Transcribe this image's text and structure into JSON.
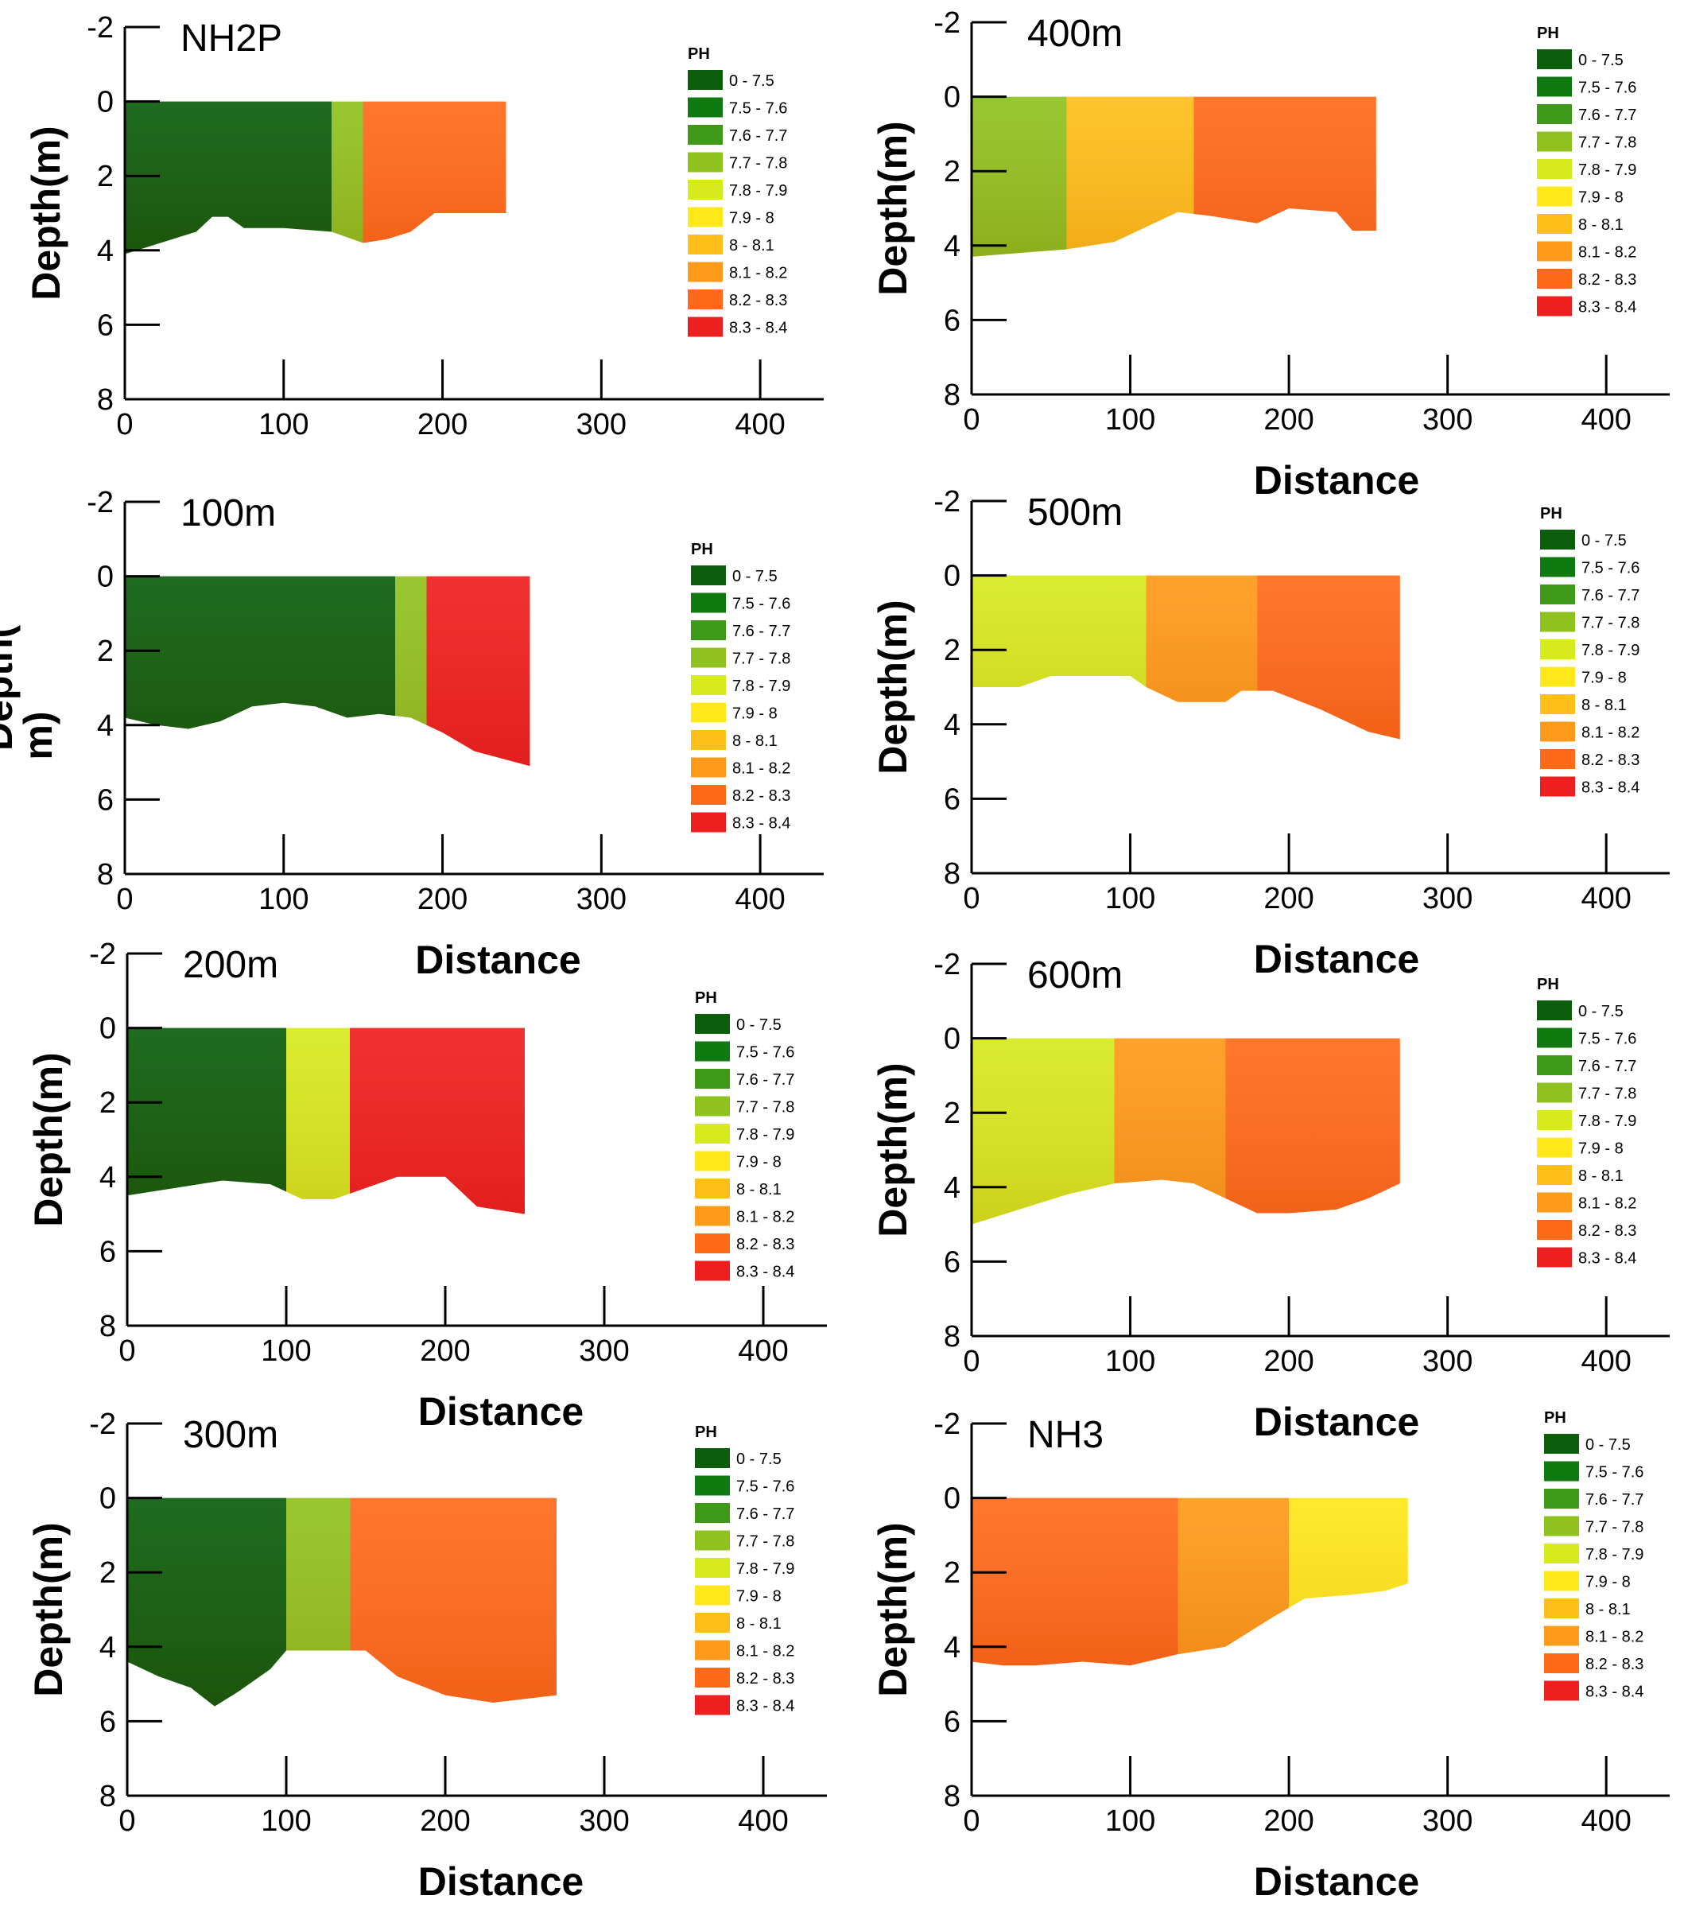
{
  "figure": {
    "background": "#ffffff"
  },
  "legend_entries": [
    {
      "label": "0 - 7.5",
      "color": "#0b5d0b"
    },
    {
      "label": "7.5 - 7.6",
      "color": "#0f7a10"
    },
    {
      "label": "7.6 - 7.7",
      "color": "#3f9a1a"
    },
    {
      "label": "7.7 - 7.8",
      "color": "#8fc21f"
    },
    {
      "label": "7.8 - 7.9",
      "color": "#d6ea1e"
    },
    {
      "label": "7.9 - 8",
      "color": "#ffe81a"
    },
    {
      "label": "8 - 8.1",
      "color": "#ffbf1a"
    },
    {
      "label": "8.1 - 8.2",
      "color": "#ff9a1a"
    },
    {
      "label": "8.2 - 8.3",
      "color": "#ff6a1a"
    },
    {
      "label": "8.3 - 8.4",
      "color": "#ee1f1f"
    }
  ],
  "chart_data": [
    {
      "type": "heatmap",
      "title": "NH2P",
      "xlabel": "",
      "ylabel": "Depth(m)",
      "xlim": [
        0,
        440
      ],
      "ylim": [
        -2,
        8
      ],
      "x_ticks": [
        "0",
        "100",
        "200",
        "300",
        "400"
      ],
      "y_ticks": [
        "-2",
        "0",
        "2",
        "4",
        "6",
        "8"
      ],
      "legend_title": "PH",
      "bottom_profile": {
        "x": [
          0,
          15,
          30,
          45,
          55,
          65,
          75,
          100,
          130,
          150,
          165,
          180,
          195,
          240
        ],
        "y": [
          4.1,
          3.9,
          3.7,
          3.5,
          3.1,
          3.1,
          3.4,
          3.4,
          3.5,
          3.8,
          3.7,
          3.5,
          3.0,
          3.0
        ]
      },
      "surface_x_max": 240,
      "regions": [
        {
          "label": "0 - 7.5",
          "x_range": [
            0,
            130
          ]
        },
        {
          "label": "7.7 - 7.8",
          "x_range": [
            130,
            150
          ]
        },
        {
          "label": "8.2 - 8.3",
          "x_range": [
            150,
            240
          ]
        }
      ]
    },
    {
      "type": "heatmap",
      "title": "100m",
      "xlabel": "Distance",
      "ylabel": "Depth(\nm)",
      "xlim": [
        0,
        440
      ],
      "ylim": [
        -2,
        8
      ],
      "x_ticks": [
        "0",
        "100",
        "200",
        "300",
        "400"
      ],
      "y_ticks": [
        "-2",
        "0",
        "2",
        "4",
        "6",
        "8"
      ],
      "legend_title": "PH",
      "bottom_profile": {
        "x": [
          0,
          20,
          40,
          60,
          80,
          100,
          120,
          140,
          160,
          180,
          200,
          220,
          255
        ],
        "y": [
          3.8,
          4.0,
          4.1,
          3.9,
          3.5,
          3.4,
          3.5,
          3.8,
          3.7,
          3.8,
          4.2,
          4.7,
          5.1
        ]
      },
      "surface_x_max": 255,
      "regions": [
        {
          "label": "0 - 7.5",
          "x_range": [
            0,
            170
          ]
        },
        {
          "label": "7.7 - 7.8",
          "x_range": [
            170,
            190
          ]
        },
        {
          "label": "8.3 - 8.4",
          "x_range": [
            190,
            255
          ]
        }
      ]
    },
    {
      "type": "heatmap",
      "title": "200m",
      "xlabel": "Distance",
      "ylabel": "Depth(m)",
      "xlim": [
        0,
        440
      ],
      "ylim": [
        -2,
        8
      ],
      "x_ticks": [
        "0",
        "100",
        "200",
        "300",
        "400"
      ],
      "y_ticks": [
        "-2",
        "0",
        "2",
        "4",
        "6",
        "8"
      ],
      "legend_title": "PH",
      "bottom_profile": {
        "x": [
          0,
          30,
          60,
          90,
          110,
          130,
          150,
          170,
          200,
          220,
          250
        ],
        "y": [
          4.5,
          4.3,
          4.1,
          4.2,
          4.6,
          4.6,
          4.3,
          4.0,
          4.0,
          4.8,
          5.0
        ]
      },
      "surface_x_max": 250,
      "regions": [
        {
          "label": "0 - 7.5",
          "x_range": [
            0,
            100
          ]
        },
        {
          "label": "7.8 - 7.9",
          "x_range": [
            100,
            140
          ]
        },
        {
          "label": "8.3 - 8.4",
          "x_range": [
            140,
            250
          ]
        }
      ]
    },
    {
      "type": "heatmap",
      "title": "300m",
      "xlabel": "Distance",
      "ylabel": "Depth(m)",
      "xlim": [
        0,
        440
      ],
      "ylim": [
        -2,
        8
      ],
      "x_ticks": [
        "0",
        "100",
        "200",
        "300",
        "400"
      ],
      "y_ticks": [
        "-2",
        "0",
        "2",
        "4",
        "6",
        "8"
      ],
      "legend_title": "PH",
      "bottom_profile": {
        "x": [
          0,
          20,
          40,
          55,
          70,
          90,
          100,
          150,
          170,
          200,
          230,
          270
        ],
        "y": [
          4.4,
          4.8,
          5.1,
          5.6,
          5.2,
          4.6,
          4.1,
          4.1,
          4.8,
          5.3,
          5.5,
          5.3
        ]
      },
      "surface_x_max": 270,
      "regions": [
        {
          "label": "0 - 7.5",
          "x_range": [
            0,
            100
          ]
        },
        {
          "label": "7.7 - 7.8",
          "x_range": [
            100,
            140
          ]
        },
        {
          "label": "8.2 - 8.3",
          "x_range": [
            140,
            270
          ]
        }
      ]
    },
    {
      "type": "heatmap",
      "title": "400m",
      "xlabel": "Distance",
      "ylabel": "Depth(m)",
      "xlim": [
        0,
        440
      ],
      "ylim": [
        -2,
        8
      ],
      "x_ticks": [
        "0",
        "100",
        "200",
        "300",
        "400"
      ],
      "y_ticks": [
        "-2",
        "0",
        "2",
        "4",
        "6",
        "8"
      ],
      "legend_title": "PH",
      "bottom_profile": {
        "x": [
          0,
          30,
          60,
          90,
          110,
          130,
          150,
          180,
          200,
          230,
          240,
          255
        ],
        "y": [
          4.3,
          4.2,
          4.1,
          3.9,
          3.5,
          3.1,
          3.2,
          3.4,
          3.0,
          3.1,
          3.6,
          3.6
        ]
      },
      "surface_x_max": 255,
      "regions": [
        {
          "label": "7.7 - 7.8",
          "x_range": [
            0,
            60
          ]
        },
        {
          "label": "8 - 8.1",
          "x_range": [
            60,
            140
          ]
        },
        {
          "label": "8.2 - 8.3",
          "x_range": [
            140,
            255
          ]
        }
      ]
    },
    {
      "type": "heatmap",
      "title": "500m",
      "xlabel": "Distance",
      "ylabel": "Depth(m)",
      "xlim": [
        0,
        440
      ],
      "ylim": [
        -2,
        8
      ],
      "x_ticks": [
        "0",
        "100",
        "200",
        "300",
        "400"
      ],
      "y_ticks": [
        "-2",
        "0",
        "2",
        "4",
        "6",
        "8"
      ],
      "legend_title": "PH",
      "bottom_profile": {
        "x": [
          0,
          30,
          50,
          80,
          100,
          110,
          130,
          160,
          170,
          190,
          220,
          250,
          270
        ],
        "y": [
          3.0,
          3.0,
          2.7,
          2.7,
          2.7,
          3.0,
          3.4,
          3.4,
          3.1,
          3.1,
          3.6,
          4.2,
          4.4
        ]
      },
      "surface_x_max": 270,
      "regions": [
        {
          "label": "7.8 - 7.9",
          "x_range": [
            0,
            110
          ]
        },
        {
          "label": "8.1 - 8.2",
          "x_range": [
            110,
            180
          ]
        },
        {
          "label": "8.2 - 8.3",
          "x_range": [
            180,
            270
          ]
        }
      ]
    },
    {
      "type": "heatmap",
      "title": "600m",
      "xlabel": "Distance",
      "ylabel": "Depth(m)",
      "xlim": [
        0,
        440
      ],
      "ylim": [
        -2,
        8
      ],
      "x_ticks": [
        "0",
        "100",
        "200",
        "300",
        "400"
      ],
      "y_ticks": [
        "-2",
        "0",
        "2",
        "4",
        "6",
        "8"
      ],
      "legend_title": "PH",
      "bottom_profile": {
        "x": [
          0,
          30,
          60,
          90,
          120,
          140,
          160,
          180,
          200,
          230,
          250,
          270
        ],
        "y": [
          5.0,
          4.6,
          4.2,
          3.9,
          3.8,
          3.9,
          4.3,
          4.7,
          4.7,
          4.6,
          4.3,
          3.9
        ]
      },
      "surface_x_max": 270,
      "regions": [
        {
          "label": "7.8 - 7.9",
          "x_range": [
            0,
            90
          ]
        },
        {
          "label": "8.1 - 8.2",
          "x_range": [
            90,
            160
          ]
        },
        {
          "label": "8.2 - 8.3",
          "x_range": [
            160,
            270
          ]
        }
      ]
    },
    {
      "type": "heatmap",
      "title": "NH3",
      "xlabel": "Distance",
      "ylabel": "Depth(m)",
      "xlim": [
        0,
        440
      ],
      "ylim": [
        -2,
        8
      ],
      "x_ticks": [
        "0",
        "100",
        "200",
        "300",
        "400"
      ],
      "y_ticks": [
        "-2",
        "0",
        "2",
        "4",
        "6",
        "8"
      ],
      "legend_title": "PH",
      "bottom_profile": {
        "x": [
          0,
          20,
          40,
          70,
          100,
          130,
          160,
          190,
          210,
          240,
          260,
          275
        ],
        "y": [
          4.4,
          4.5,
          4.5,
          4.4,
          4.5,
          4.2,
          4.0,
          3.2,
          2.7,
          2.6,
          2.5,
          2.3
        ]
      },
      "surface_x_max": 275,
      "regions": [
        {
          "label": "8.2 - 8.3",
          "x_range": [
            0,
            130
          ]
        },
        {
          "label": "8.1 - 8.2",
          "x_range": [
            130,
            200
          ]
        },
        {
          "label": "7.9 - 8",
          "x_range": [
            200,
            275
          ]
        }
      ]
    }
  ]
}
